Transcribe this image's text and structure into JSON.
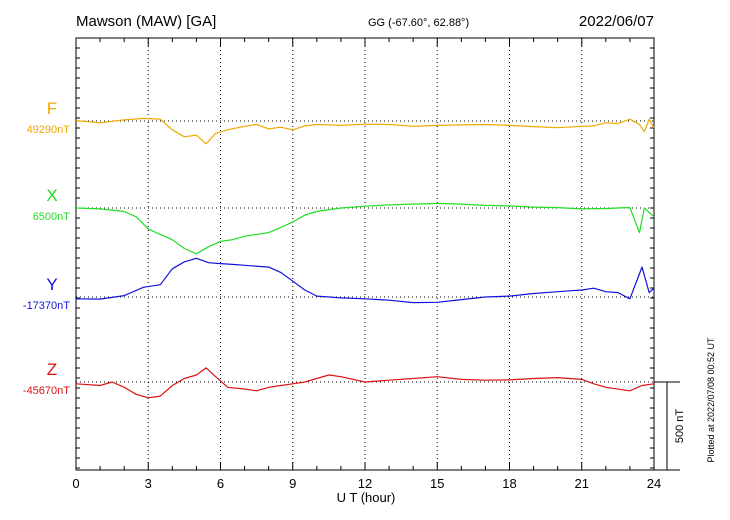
{
  "chart_data": {
    "type": "line",
    "title": "Mawson (MAW)  [GA]",
    "subtitle": "GG (-67.60°,  62.88°)",
    "date": "2022/06/07",
    "xlabel": "U T (hour)",
    "xlim": [
      0,
      24
    ],
    "x_ticks": [
      "0",
      "3",
      "6",
      "9",
      "12",
      "15",
      "18",
      "21",
      "24"
    ],
    "scale_label": "500 nT",
    "scale_nT": 500,
    "plotted_note": "Plotted at 2022/07/08 00:52 UT",
    "grid": true,
    "series": [
      {
        "name": "F",
        "baseline_label": "49290nT",
        "baseline_nT": 49290,
        "color": "#f0a800",
        "points": [
          [
            0,
            49292
          ],
          [
            1,
            49280
          ],
          [
            2,
            49296
          ],
          [
            2.8,
            49305
          ],
          [
            3.5,
            49300
          ],
          [
            4,
            49240
          ],
          [
            4.5,
            49200
          ],
          [
            5,
            49210
          ],
          [
            5.4,
            49160
          ],
          [
            5.8,
            49220
          ],
          [
            6.3,
            49240
          ],
          [
            7,
            49260
          ],
          [
            7.5,
            49270
          ],
          [
            8,
            49245
          ],
          [
            8.5,
            49255
          ],
          [
            9,
            49240
          ],
          [
            9.5,
            49262
          ],
          [
            10,
            49270
          ],
          [
            11,
            49265
          ],
          [
            12,
            49272
          ],
          [
            13,
            49270
          ],
          [
            14,
            49260
          ],
          [
            15,
            49265
          ],
          [
            16,
            49268
          ],
          [
            17,
            49270
          ],
          [
            18,
            49265
          ],
          [
            19,
            49258
          ],
          [
            20,
            49252
          ],
          [
            21,
            49260
          ],
          [
            21.5,
            49262
          ],
          [
            22,
            49280
          ],
          [
            22.5,
            49275
          ],
          [
            23,
            49300
          ],
          [
            23.4,
            49270
          ],
          [
            23.6,
            49230
          ],
          [
            23.8,
            49300
          ],
          [
            24,
            49250
          ]
        ]
      },
      {
        "name": "X",
        "baseline_label": "6500nT",
        "baseline_nT": 6500,
        "color": "#22dd22",
        "points": [
          [
            0,
            6500
          ],
          [
            1,
            6495
          ],
          [
            2,
            6480
          ],
          [
            2.5,
            6450
          ],
          [
            3,
            6380
          ],
          [
            3.5,
            6350
          ],
          [
            4,
            6320
          ],
          [
            4.5,
            6270
          ],
          [
            5,
            6240
          ],
          [
            5.5,
            6280
          ],
          [
            6,
            6310
          ],
          [
            6.5,
            6320
          ],
          [
            7,
            6340
          ],
          [
            8,
            6360
          ],
          [
            8.5,
            6390
          ],
          [
            9,
            6420
          ],
          [
            9.5,
            6460
          ],
          [
            10,
            6480
          ],
          [
            11,
            6500
          ],
          [
            12,
            6510
          ],
          [
            13,
            6518
          ],
          [
            14,
            6522
          ],
          [
            15,
            6526
          ],
          [
            16,
            6522
          ],
          [
            17,
            6515
          ],
          [
            18,
            6512
          ],
          [
            19,
            6505
          ],
          [
            20,
            6502
          ],
          [
            21,
            6495
          ],
          [
            22,
            6497
          ],
          [
            23,
            6503
          ],
          [
            23.4,
            6360
          ],
          [
            23.6,
            6500
          ],
          [
            24,
            6450
          ]
        ]
      },
      {
        "name": "Y",
        "baseline_label": "-17370nT",
        "baseline_nT": -17370,
        "color": "#1111dd",
        "points": [
          [
            0,
            -17380
          ],
          [
            1,
            -17382
          ],
          [
            2,
            -17362
          ],
          [
            2.8,
            -17315
          ],
          [
            3.5,
            -17300
          ],
          [
            4,
            -17210
          ],
          [
            4.5,
            -17170
          ],
          [
            5,
            -17150
          ],
          [
            5.5,
            -17175
          ],
          [
            6,
            -17180
          ],
          [
            6.5,
            -17185
          ],
          [
            7,
            -17190
          ],
          [
            8,
            -17200
          ],
          [
            8.5,
            -17230
          ],
          [
            9,
            -17280
          ],
          [
            9.5,
            -17330
          ],
          [
            10,
            -17365
          ],
          [
            11,
            -17375
          ],
          [
            12,
            -17380
          ],
          [
            13,
            -17388
          ],
          [
            14,
            -17402
          ],
          [
            15,
            -17400
          ],
          [
            16,
            -17385
          ],
          [
            17,
            -17370
          ],
          [
            18,
            -17365
          ],
          [
            19,
            -17350
          ],
          [
            20,
            -17340
          ],
          [
            20.5,
            -17335
          ],
          [
            21,
            -17330
          ],
          [
            21.5,
            -17320
          ],
          [
            22,
            -17340
          ],
          [
            22.5,
            -17345
          ],
          [
            23,
            -17380
          ],
          [
            23.5,
            -17200
          ],
          [
            23.8,
            -17345
          ],
          [
            24,
            -17320
          ]
        ]
      },
      {
        "name": "Z",
        "baseline_label": "-45670nT",
        "baseline_nT": -45670,
        "color": "#dd1111",
        "points": [
          [
            0,
            -45680
          ],
          [
            1,
            -45690
          ],
          [
            1.5,
            -45670
          ],
          [
            2,
            -45700
          ],
          [
            2.5,
            -45740
          ],
          [
            3,
            -45760
          ],
          [
            3.5,
            -45750
          ],
          [
            4,
            -45690
          ],
          [
            4.5,
            -45650
          ],
          [
            5,
            -45630
          ],
          [
            5.4,
            -45590
          ],
          [
            5.8,
            -45640
          ],
          [
            6.3,
            -45700
          ],
          [
            7,
            -45710
          ],
          [
            7.5,
            -45720
          ],
          [
            8,
            -45700
          ],
          [
            8.5,
            -45690
          ],
          [
            9,
            -45680
          ],
          [
            9.5,
            -45670
          ],
          [
            10,
            -45650
          ],
          [
            10.5,
            -45630
          ],
          [
            11,
            -45640
          ],
          [
            12,
            -45670
          ],
          [
            13,
            -45660
          ],
          [
            14,
            -45650
          ],
          [
            15,
            -45640
          ],
          [
            16,
            -45655
          ],
          [
            17,
            -45660
          ],
          [
            18,
            -45658
          ],
          [
            19,
            -45650
          ],
          [
            20,
            -45645
          ],
          [
            21,
            -45655
          ],
          [
            21.5,
            -45680
          ],
          [
            22,
            -45700
          ],
          [
            23,
            -45720
          ],
          [
            23.5,
            -45690
          ],
          [
            24,
            -45680
          ]
        ]
      }
    ]
  }
}
